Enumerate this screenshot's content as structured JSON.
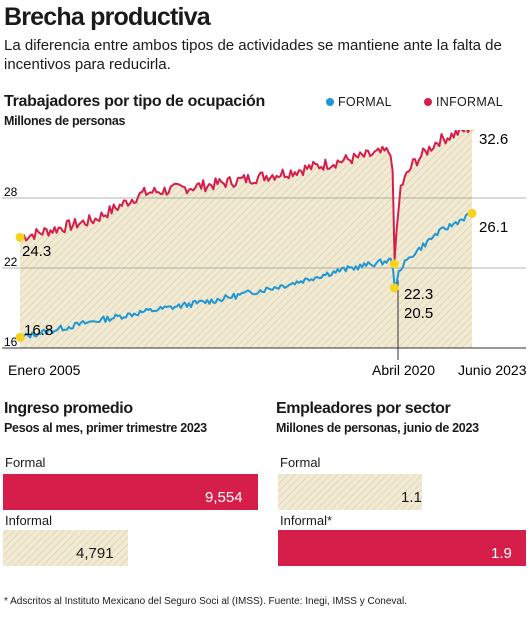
{
  "header": {
    "title": "Brecha productiva",
    "subtitle": "La diferencia entre ambos tipos de actividades se mantiene ante la falta de incentivos para reducirla."
  },
  "line_chart": {
    "title": "Trabajadores por tipo de ocupación",
    "subtitle": "Millones de personas",
    "legend": {
      "formal": "FORMAL",
      "informal": "INFORMAL"
    },
    "y_ticks": [
      "28",
      "22",
      "16"
    ],
    "x_labels": {
      "start": "Enero 2005",
      "mid": "Abril 2020",
      "end": "Junio 2023"
    },
    "callouts": {
      "informal_start": "24.3",
      "formal_start": "16.8",
      "informal_end": "32.6",
      "formal_end": "26.1",
      "informal_dip": "22.3",
      "formal_dip": "20.5"
    }
  },
  "income": {
    "title": "Ingreso promedio",
    "subtitle": "Pesos al mes, primer trimestre 2023",
    "bars": [
      {
        "label": "Formal",
        "value_text": "9,554"
      },
      {
        "label": "Informal",
        "value_text": "4,791"
      }
    ]
  },
  "employers": {
    "title": "Empleadores por sector",
    "subtitle": "Millones de personas, junio de 2023",
    "bars": [
      {
        "label": "Formal",
        "value_text": "1.1"
      },
      {
        "label": "Informal*",
        "value_text": "1.9"
      }
    ]
  },
  "footnote": "* Adscritos al Instituto Mexicano del Seguro Soci al (IMSS). Fuente: Inegi, IMSS y Coneval.",
  "colors": {
    "formal": "#1f97d4",
    "informal": "#d51e4a",
    "fill": "#f1ead4",
    "hatch": "#ddd1a8",
    "marker": "#f6d31d"
  },
  "chart_data": [
    {
      "type": "line",
      "title": "Trabajadores por tipo de ocupación",
      "ylabel": "Millones de personas",
      "ylim": [
        16,
        33
      ],
      "yticks": [
        16,
        22,
        28
      ],
      "x_range": [
        "2005-01",
        "2023-06"
      ],
      "series": [
        {
          "name": "FORMAL",
          "x": [
            "2005-01",
            "2008-01",
            "2010-01",
            "2013-01",
            "2016-01",
            "2018-01",
            "2020-03",
            "2020-04",
            "2020-07",
            "2021-01",
            "2022-01",
            "2023-06"
          ],
          "values": [
            16.8,
            18.0,
            18.7,
            19.6,
            20.8,
            21.8,
            22.6,
            20.5,
            22.0,
            23.0,
            24.6,
            26.1
          ]
        },
        {
          "name": "INFORMAL",
          "x": [
            "2005-01",
            "2008-01",
            "2010-01",
            "2013-01",
            "2016-01",
            "2018-01",
            "2020-03",
            "2020-04",
            "2020-07",
            "2021-01",
            "2022-01",
            "2023-06"
          ],
          "values": [
            24.3,
            25.6,
            27.6,
            28.3,
            29.2,
            30.0,
            30.8,
            22.3,
            28.0,
            29.8,
            31.5,
            32.6
          ]
        }
      ]
    },
    {
      "type": "bar",
      "title": "Ingreso promedio",
      "ylabel": "Pesos al mes, primer trimestre 2023",
      "categories": [
        "Formal",
        "Informal"
      ],
      "values": [
        9554,
        4791
      ]
    },
    {
      "type": "bar",
      "title": "Empleadores por sector",
      "ylabel": "Millones de personas, junio de 2023",
      "categories": [
        "Formal",
        "Informal*"
      ],
      "values": [
        1.1,
        1.9
      ]
    }
  ]
}
